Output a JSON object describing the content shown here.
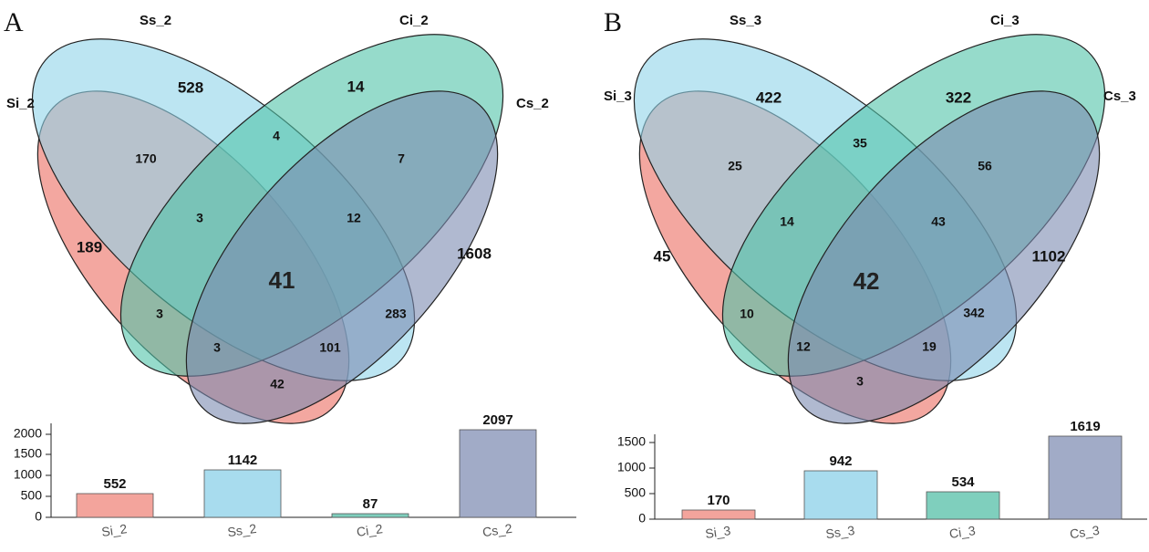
{
  "colors": {
    "si": "#ef8a80",
    "ss": "#8fd3ea",
    "ci": "#50c3a8",
    "cs": "#7c8bb1"
  },
  "panel_a": {
    "letter": "A",
    "sets": {
      "si": "Si_2",
      "ss": "Ss_2",
      "ci": "Ci_2",
      "cs": "Cs_2"
    },
    "regions": {
      "ss_only": "528",
      "ci_only": "14",
      "si_only": "189",
      "cs_only": "1608",
      "si_ss": "170",
      "ss_ci": "4",
      "ci_cs": "7",
      "si_ss_ci": "3",
      "ss_ci_cs": "12",
      "all": "41",
      "si_ci": "3",
      "ss_cs": "283",
      "si_ss_cs": "101",
      "si_ci_cs": "3",
      "si_cs": "42"
    },
    "bars": [
      {
        "label": "Si_2",
        "value": "552"
      },
      {
        "label": "Ss_2",
        "value": "1142"
      },
      {
        "label": "Ci_2",
        "value": "87"
      },
      {
        "label": "Cs_2",
        "value": "2097"
      }
    ],
    "yticks": [
      "0",
      "500",
      "1000",
      "1500",
      "2000"
    ]
  },
  "panel_b": {
    "letter": "B",
    "sets": {
      "si": "Si_3",
      "ss": "Ss_3",
      "ci": "Ci_3",
      "cs": "Cs_3"
    },
    "regions": {
      "ss_only": "422",
      "ci_only": "322",
      "si_only": "45",
      "cs_only": "1102",
      "si_ss": "25",
      "ss_ci": "35",
      "ci_cs": "56",
      "si_ss_ci": "14",
      "ss_ci_cs": "43",
      "all": "42",
      "si_ci": "10",
      "ss_cs": "342",
      "si_ss_cs": "19",
      "si_ci_cs": "12",
      "si_cs": "3"
    },
    "bars": [
      {
        "label": "Si_3",
        "value": "170"
      },
      {
        "label": "Ss_3",
        "value": "942"
      },
      {
        "label": "Ci_3",
        "value": "534"
      },
      {
        "label": "Cs_3",
        "value": "1619"
      }
    ],
    "yticks": [
      "0",
      "500",
      "1000",
      "1500"
    ]
  }
}
